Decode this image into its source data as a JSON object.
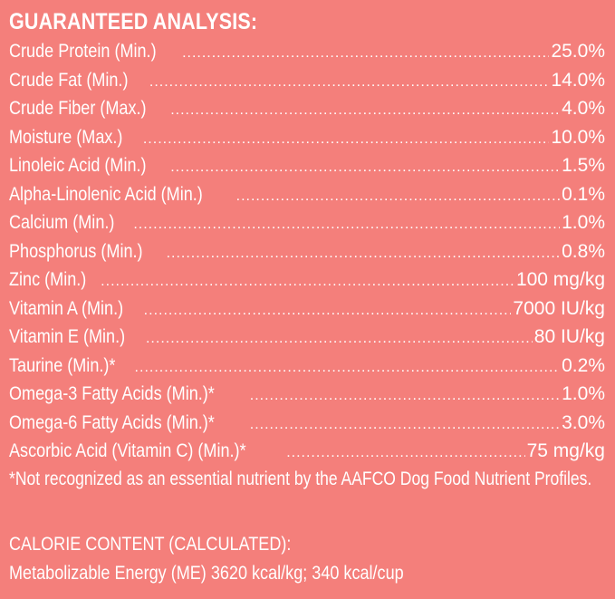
{
  "colors": {
    "background": "#f47f7b",
    "text": "#ffffff"
  },
  "analysis": {
    "heading": "GUARANTEED ANALYSIS:",
    "rows": [
      {
        "name": "Crude Protein (Min.)",
        "value": "25.0%"
      },
      {
        "name": "Crude Fat (Min.)",
        "value": "14.0%"
      },
      {
        "name": "Crude Fiber (Max.)",
        "value": "4.0%"
      },
      {
        "name": "Moisture (Max.)",
        "value": "10.0%"
      },
      {
        "name": "Linoleic Acid (Min.)",
        "value": "1.5%"
      },
      {
        "name": "Alpha-Linolenic Acid (Min.)",
        "value": "0.1%"
      },
      {
        "name": "Calcium (Min.)",
        "value": "1.0%"
      },
      {
        "name": "Phosphorus (Min.)",
        "value": "0.8%"
      },
      {
        "name": "Zinc (Min.)",
        "value": "100 mg/kg"
      },
      {
        "name": "Vitamin A (Min.)",
        "value": "7000 IU/kg"
      },
      {
        "name": "Vitamin E (Min.)",
        "value": "80 IU/kg"
      },
      {
        "name": "Taurine (Min.)*",
        "value": "0.2%"
      },
      {
        "name": "Omega-3 Fatty Acids (Min.)*",
        "value": "1.0%"
      },
      {
        "name": "Omega-6 Fatty Acids (Min.)*",
        "value": "3.0%"
      },
      {
        "name": "Ascorbic Acid (Vitamin C) (Min.)*",
        "value": "75 mg/kg"
      }
    ],
    "footnote": "*Not recognized as an essential nutrient by the AAFCO Dog Food Nutrient Profiles."
  },
  "calorie": {
    "heading": "CALORIE CONTENT (CALCULATED):",
    "line": "Metabolizable Energy (ME) 3620 kcal/kg;  340 kcal/cup"
  }
}
